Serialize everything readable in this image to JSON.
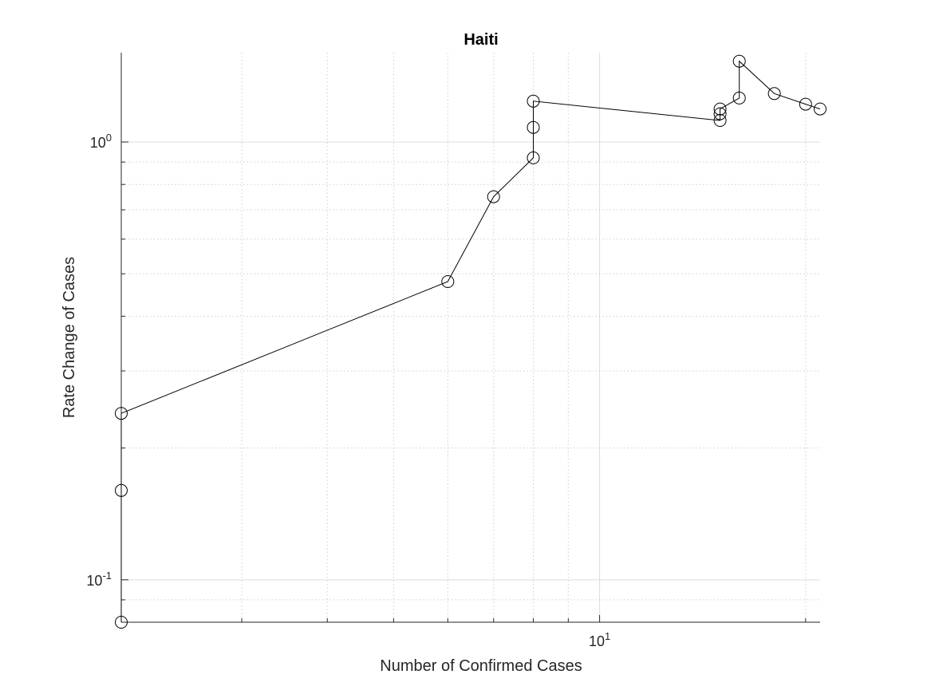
{
  "chart_data": {
    "type": "line",
    "title": "Haiti",
    "xlabel": "Number of Confirmed Cases",
    "ylabel": "Rate Change of Cases",
    "x_scale": "log",
    "y_scale": "log",
    "xlim": [
      2,
      21
    ],
    "ylim": [
      0.08,
      1.6
    ],
    "grid": true,
    "minor_grid": true,
    "x_major_ticks": [
      {
        "value": 10,
        "base": "10",
        "exp": "1"
      }
    ],
    "y_major_ticks": [
      {
        "value": 0.1,
        "base": "10",
        "exp": "-1"
      },
      {
        "value": 1,
        "base": "10",
        "exp": "0"
      }
    ],
    "x_minor_ticks": [
      3,
      4,
      5,
      6,
      7,
      8,
      9,
      20
    ],
    "y_minor_ticks": [
      0.09,
      0.2,
      0.3,
      0.4,
      0.5,
      0.6,
      0.7,
      0.8,
      0.9
    ],
    "series": [
      {
        "marker": "circle",
        "color": "#000000",
        "x": [
          2,
          2,
          2,
          6,
          7,
          8,
          8,
          8,
          15,
          15,
          15,
          16,
          16,
          18,
          20,
          21
        ],
        "y": [
          0.08,
          0.16,
          0.24,
          0.48,
          0.75,
          0.92,
          1.08,
          1.24,
          1.12,
          1.16,
          1.19,
          1.26,
          1.53,
          1.29,
          1.22,
          1.19
        ]
      }
    ]
  }
}
